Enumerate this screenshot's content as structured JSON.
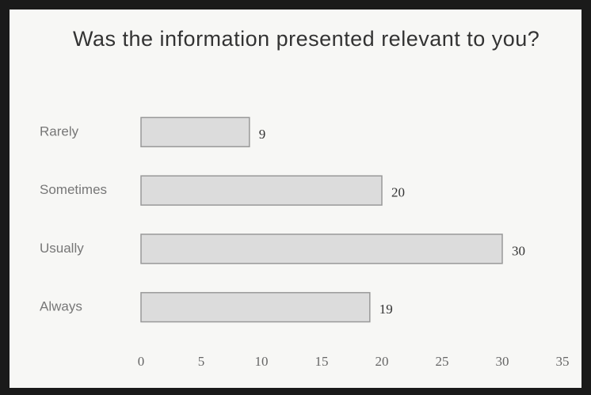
{
  "chart_data": {
    "type": "bar",
    "orientation": "horizontal",
    "title": "Was the information presented relevant to you?",
    "categories": [
      "Rarely",
      "Sometimes",
      "Usually",
      "Always"
    ],
    "values": [
      9,
      20,
      30,
      19
    ],
    "color": "#dcdcdc",
    "xlim": [
      0,
      35
    ],
    "xticks": [
      0,
      5,
      10,
      15,
      20,
      25,
      30,
      35
    ],
    "grid": false
  }
}
